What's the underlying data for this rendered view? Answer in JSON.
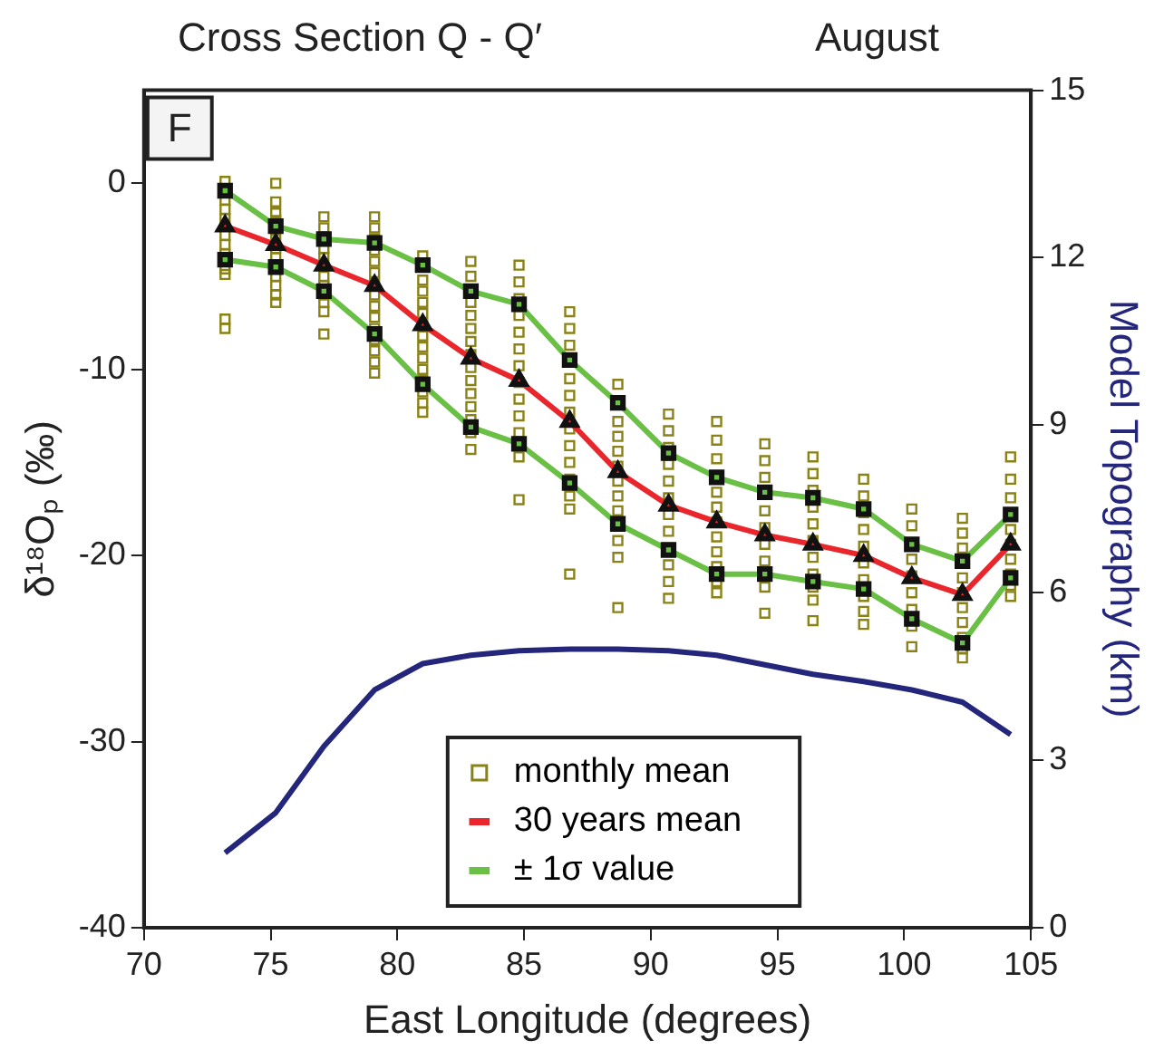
{
  "chart_data": {
    "type": "line",
    "title": "Cross Section Q - Q′",
    "subtitle": "August",
    "xlabel": "East Longitude (degrees)",
    "ylabel": "δ¹⁸Oₚ (‰)",
    "y2label": "Model Topography (km)",
    "annotations": [
      "F"
    ],
    "x": [
      73.2,
      75.2,
      77.1,
      79.1,
      81.0,
      82.9,
      84.8,
      86.8,
      88.7,
      90.7,
      92.6,
      94.5,
      96.4,
      98.4,
      100.3,
      102.3,
      104.2
    ],
    "series": [
      {
        "name": "monthly mean",
        "type": "scatter",
        "color": "#8a8216",
        "marker": "square",
        "x": [
          73.2,
          73.2,
          73.2,
          73.2,
          73.2,
          73.2,
          73.2,
          73.2,
          73.2,
          73.2,
          73.2,
          75.2,
          75.2,
          75.2,
          75.2,
          75.2,
          75.2,
          75.2,
          75.2,
          75.2,
          75.2,
          75.2,
          77.1,
          77.1,
          77.1,
          77.1,
          77.1,
          77.1,
          77.1,
          77.1,
          77.1,
          77.1,
          79.1,
          79.1,
          79.1,
          79.1,
          79.1,
          79.1,
          79.1,
          79.1,
          79.1,
          79.1,
          79.1,
          79.1,
          79.1,
          79.1,
          79.1,
          81.0,
          81.0,
          81.0,
          81.0,
          81.0,
          81.0,
          81.0,
          81.0,
          81.0,
          81.0,
          81.0,
          81.0,
          81.0,
          81.0,
          82.9,
          82.9,
          82.9,
          82.9,
          82.9,
          82.9,
          82.9,
          82.9,
          82.9,
          82.9,
          82.9,
          82.9,
          82.9,
          82.9,
          84.8,
          84.8,
          84.8,
          84.8,
          84.8,
          84.8,
          84.8,
          84.8,
          84.8,
          84.8,
          84.8,
          84.8,
          84.8,
          86.8,
          86.8,
          86.8,
          86.8,
          86.8,
          86.8,
          86.8,
          86.8,
          86.8,
          86.8,
          86.8,
          86.8,
          86.8,
          88.7,
          88.7,
          88.7,
          88.7,
          88.7,
          88.7,
          88.7,
          88.7,
          88.7,
          88.7,
          88.7,
          90.7,
          90.7,
          90.7,
          90.7,
          90.7,
          90.7,
          90.7,
          90.7,
          90.7,
          90.7,
          90.7,
          90.7,
          92.6,
          92.6,
          92.6,
          92.6,
          92.6,
          92.6,
          92.6,
          92.6,
          92.6,
          92.6,
          92.6,
          94.5,
          94.5,
          94.5,
          94.5,
          94.5,
          94.5,
          94.5,
          94.5,
          94.5,
          96.4,
          96.4,
          96.4,
          96.4,
          96.4,
          96.4,
          96.4,
          96.4,
          96.4,
          96.4,
          96.4,
          98.4,
          98.4,
          98.4,
          98.4,
          98.4,
          98.4,
          98.4,
          98.4,
          98.4,
          98.4,
          100.3,
          100.3,
          100.3,
          100.3,
          100.3,
          100.3,
          100.3,
          100.3,
          100.3,
          102.3,
          102.3,
          102.3,
          102.3,
          102.3,
          102.3,
          102.3,
          102.3,
          102.3,
          102.3,
          104.2,
          104.2,
          104.2,
          104.2,
          104.2,
          104.2,
          104.2,
          104.2,
          104.2
        ],
        "values": [
          0.1,
          -0.9,
          -1.4,
          -1.9,
          -2.8,
          -3.3,
          -3.8,
          -4.6,
          -4.9,
          -7.3,
          -7.8,
          0.0,
          -1.0,
          -1.6,
          -2.0,
          -3.0,
          -3.5,
          -4.0,
          -5.0,
          -5.5,
          -6.0,
          -6.4,
          -1.8,
          -2.4,
          -3.5,
          -4.0,
          -5.0,
          -5.5,
          -6.0,
          -6.4,
          -6.9,
          -8.1,
          -1.8,
          -2.4,
          -3.0,
          -3.6,
          -4.2,
          -4.8,
          -5.4,
          -6.0,
          -6.6,
          -7.2,
          -7.8,
          -8.4,
          -9.0,
          -9.6,
          -10.2,
          -3.9,
          -5.2,
          -5.8,
          -6.4,
          -7.0,
          -7.6,
          -8.2,
          -8.8,
          -9.4,
          -10.0,
          -10.6,
          -11.2,
          -11.8,
          -12.3,
          -4.2,
          -5.0,
          -6.4,
          -7.1,
          -7.8,
          -8.5,
          -9.2,
          -9.9,
          -10.6,
          -11.3,
          -12.0,
          -12.7,
          -13.4,
          -14.3,
          -4.4,
          -5.3,
          -6.2,
          -7.1,
          -8.0,
          -8.9,
          -9.8,
          -10.7,
          -11.6,
          -12.5,
          -13.4,
          -14.7,
          -17.0,
          -6.9,
          -7.8,
          -8.7,
          -10.5,
          -11.4,
          -12.3,
          -13.2,
          -14.1,
          -15.0,
          -15.9,
          -16.8,
          -17.5,
          -21.0,
          -10.8,
          -12.8,
          -13.6,
          -14.4,
          -15.2,
          -16.0,
          -16.8,
          -17.6,
          -19.2,
          -20.1,
          -22.8,
          -12.4,
          -13.3,
          -14.2,
          -15.1,
          -16.0,
          -16.9,
          -17.8,
          -18.7,
          -19.6,
          -20.5,
          -21.4,
          -22.3,
          -12.8,
          -13.8,
          -14.8,
          -16.6,
          -17.4,
          -18.2,
          -19.0,
          -19.8,
          -20.6,
          -21.4,
          -22.0,
          -14.0,
          -14.9,
          -15.8,
          -17.6,
          -18.5,
          -19.4,
          -20.3,
          -21.7,
          -23.1,
          -14.7,
          -15.6,
          -16.5,
          -17.4,
          -18.3,
          -19.2,
          -20.1,
          -21.0,
          -21.7,
          -22.4,
          -23.5,
          -15.9,
          -16.8,
          -17.7,
          -18.6,
          -19.5,
          -20.4,
          -21.3,
          -22.2,
          -23.0,
          -23.7,
          -17.5,
          -18.4,
          -19.3,
          -20.2,
          -21.1,
          -22.0,
          -22.9,
          -23.8,
          -24.9,
          -18.0,
          -18.8,
          -19.6,
          -21.2,
          -22.0,
          -22.8,
          -23.6,
          -24.4,
          -25.0,
          -25.5,
          -14.7,
          -15.9,
          -16.9,
          -18.6,
          -19.4,
          -20.2,
          -21.0,
          -21.6,
          -22.2
        ]
      },
      {
        "name": "30 years mean",
        "type": "line",
        "color": "#e8262b",
        "marker": "triangle",
        "values": [
          -2.3,
          -3.3,
          -4.4,
          -5.5,
          -7.6,
          -9.4,
          -10.6,
          -12.8,
          -15.5,
          -17.3,
          -18.2,
          -18.9,
          -19.4,
          -20.0,
          -21.2,
          -22.1,
          -19.4
        ]
      },
      {
        "name": "± 1σ value",
        "type": "line",
        "color": "#6abf45",
        "marker": "square",
        "values": [
          -0.4,
          -2.3,
          -3.0,
          -3.2,
          -4.4,
          -5.8,
          -6.5,
          -9.5,
          -11.8,
          -14.5,
          -15.8,
          -16.6,
          -16.9,
          -17.5,
          -19.4,
          -20.3,
          -17.8
        ]
      },
      {
        "type": "line",
        "color": "#6abf45",
        "marker": "square",
        "values": [
          -4.1,
          -4.5,
          -5.8,
          -8.1,
          -10.8,
          -13.1,
          -14.0,
          -16.1,
          -18.3,
          -19.7,
          -21.0,
          -21.0,
          -21.4,
          -21.8,
          -23.4,
          -24.7,
          -21.2
        ]
      },
      {
        "type": "line",
        "color": "#23267a",
        "marker": "none",
        "axis": "y2",
        "values": [
          1.34,
          2.06,
          3.25,
          4.26,
          4.73,
          4.88,
          4.96,
          4.99,
          4.99,
          4.96,
          4.88,
          4.71,
          4.54,
          4.41,
          4.26,
          4.04,
          3.46
        ]
      }
    ],
    "xlim": [
      70,
      105
    ],
    "xticks": [
      70,
      75,
      80,
      85,
      90,
      95,
      100,
      105
    ],
    "ylim": [
      -40,
      5
    ],
    "yticks": [
      -40,
      -30,
      -20,
      -10,
      0
    ],
    "y2lim": [
      0,
      15
    ],
    "y2ticks": [
      0,
      3,
      6,
      9,
      12,
      15
    ],
    "legend": "bottom",
    "grid": false
  }
}
